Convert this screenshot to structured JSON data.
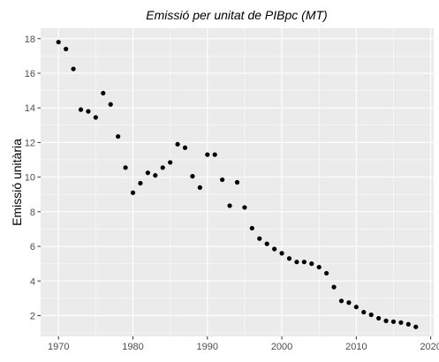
{
  "chart_data": {
    "type": "scatter",
    "title": "Emissió per unitat de PIBpc (MT)",
    "xlabel": "",
    "ylabel": "Emissió unitària",
    "xlim": [
      1967.6,
      2020.4
    ],
    "ylim": [
      0.8,
      18.6
    ],
    "x_ticks": [
      1970,
      1980,
      1990,
      2000,
      2010,
      2020
    ],
    "y_ticks": [
      2,
      4,
      6,
      8,
      10,
      12,
      14,
      16,
      18
    ],
    "grid": true,
    "legend": "none",
    "point_color": "#000000",
    "background_color": "#ebebeb",
    "grid_color": "#ffffff",
    "x": [
      1970,
      1971,
      1972,
      1973,
      1974,
      1975,
      1976,
      1977,
      1978,
      1979,
      1980,
      1981,
      1982,
      1983,
      1984,
      1985,
      1986,
      1987,
      1988,
      1989,
      1990,
      1991,
      1992,
      1993,
      1994,
      1995,
      1996,
      1997,
      1998,
      1999,
      2000,
      2001,
      2002,
      2003,
      2004,
      2005,
      2006,
      2007,
      2008,
      2009,
      2010,
      2011,
      2012,
      2013,
      2014,
      2015,
      2016,
      2017,
      2018
    ],
    "y": [
      17.8,
      17.4,
      16.25,
      13.9,
      13.8,
      13.45,
      14.85,
      14.2,
      12.35,
      10.55,
      9.1,
      9.65,
      10.25,
      10.1,
      10.55,
      10.85,
      11.9,
      11.7,
      10.05,
      9.4,
      11.3,
      11.3,
      9.85,
      8.35,
      9.7,
      8.25,
      7.05,
      6.45,
      6.15,
      5.85,
      5.6,
      5.3,
      5.1,
      5.1,
      5.0,
      4.8,
      4.45,
      3.65,
      2.85,
      2.75,
      2.5,
      2.2,
      2.05,
      1.85,
      1.7,
      1.65,
      1.6,
      1.5,
      1.35
    ]
  }
}
